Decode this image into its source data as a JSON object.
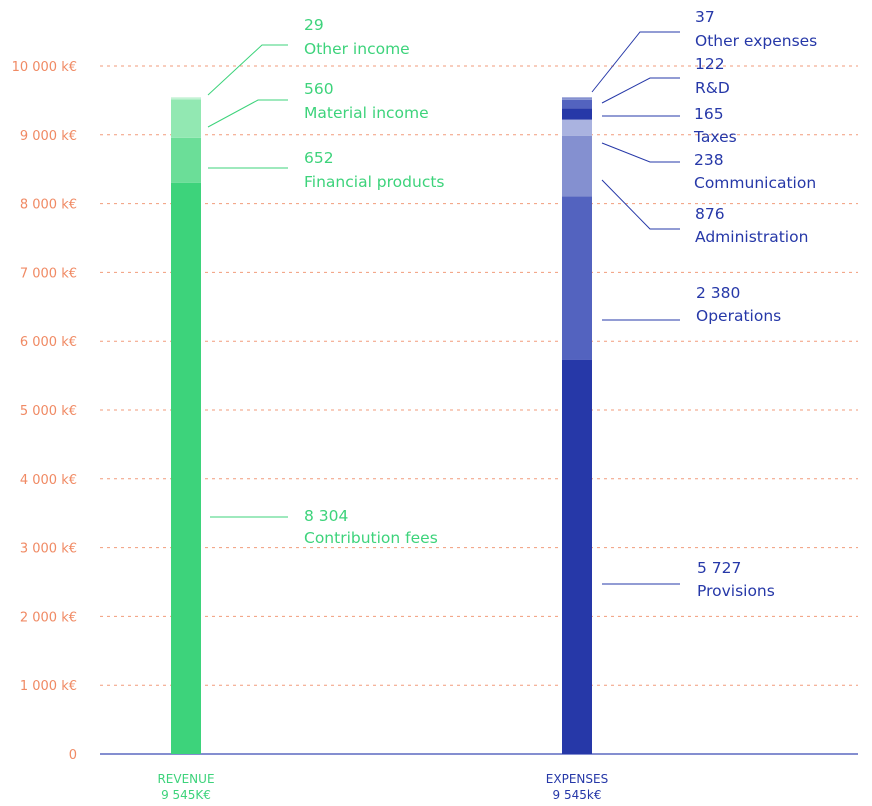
{
  "chart_data": {
    "type": "bar",
    "stacked": true,
    "ylim": [
      0,
      10000
    ],
    "yticks": [
      {
        "value": 0,
        "label": "0"
      },
      {
        "value": 1000,
        "label": "1 000 k€"
      },
      {
        "value": 2000,
        "label": "2 000 k€"
      },
      {
        "value": 3000,
        "label": "3 000 k€"
      },
      {
        "value": 4000,
        "label": "4 000 k€"
      },
      {
        "value": 5000,
        "label": "5 000 k€"
      },
      {
        "value": 6000,
        "label": "6 000 k€"
      },
      {
        "value": 7000,
        "label": "7 000 k€"
      },
      {
        "value": 8000,
        "label": "8 000 k€"
      },
      {
        "value": 9000,
        "label": "9 000 k€"
      },
      {
        "value": 10000,
        "label": "10 000 k€"
      }
    ],
    "grid": true,
    "categories": [
      {
        "name": "REVENUE",
        "total": "9 545K€",
        "segments": [
          {
            "name": "Contribution fees",
            "value": 8304,
            "value_label": "8 304",
            "color": "#3dd37b"
          },
          {
            "name": "Financial products",
            "value": 652,
            "value_label": "652",
            "color": "#6bde98"
          },
          {
            "name": "Material income",
            "value": 560,
            "value_label": "560",
            "color": "#92e8b2"
          },
          {
            "name": "Other income",
            "value": 29,
            "value_label": "29",
            "color": "#c3f2d4"
          }
        ]
      },
      {
        "name": "EXPENSES",
        "total": "9 545k€",
        "segments": [
          {
            "name": "Provisions",
            "value": 5727,
            "value_label": "5 727",
            "color": "#2638a8"
          },
          {
            "name": "Operations",
            "value": 2380,
            "value_label": "2 380",
            "color": "#5363bf"
          },
          {
            "name": "Administration",
            "value": 876,
            "value_label": "876",
            "color": "#8490d0"
          },
          {
            "name": "Communication",
            "value": 238,
            "value_label": "238",
            "color": "#aab3e0"
          },
          {
            "name": "Taxes",
            "value": 165,
            "value_label": "165",
            "color": "#2638a8"
          },
          {
            "name": "R&D",
            "value": 122,
            "value_label": "122",
            "color": "#5363bf"
          },
          {
            "name": "Other expenses",
            "value": 37,
            "value_label": "37",
            "color": "#8490d0"
          }
        ]
      }
    ],
    "colors": {
      "axis_text": "#f08a64",
      "grid": "#f08a64",
      "baseline": "#3a4bb5",
      "revenue_text": "#3dd37b",
      "expenses_text": "#2638a8"
    }
  }
}
